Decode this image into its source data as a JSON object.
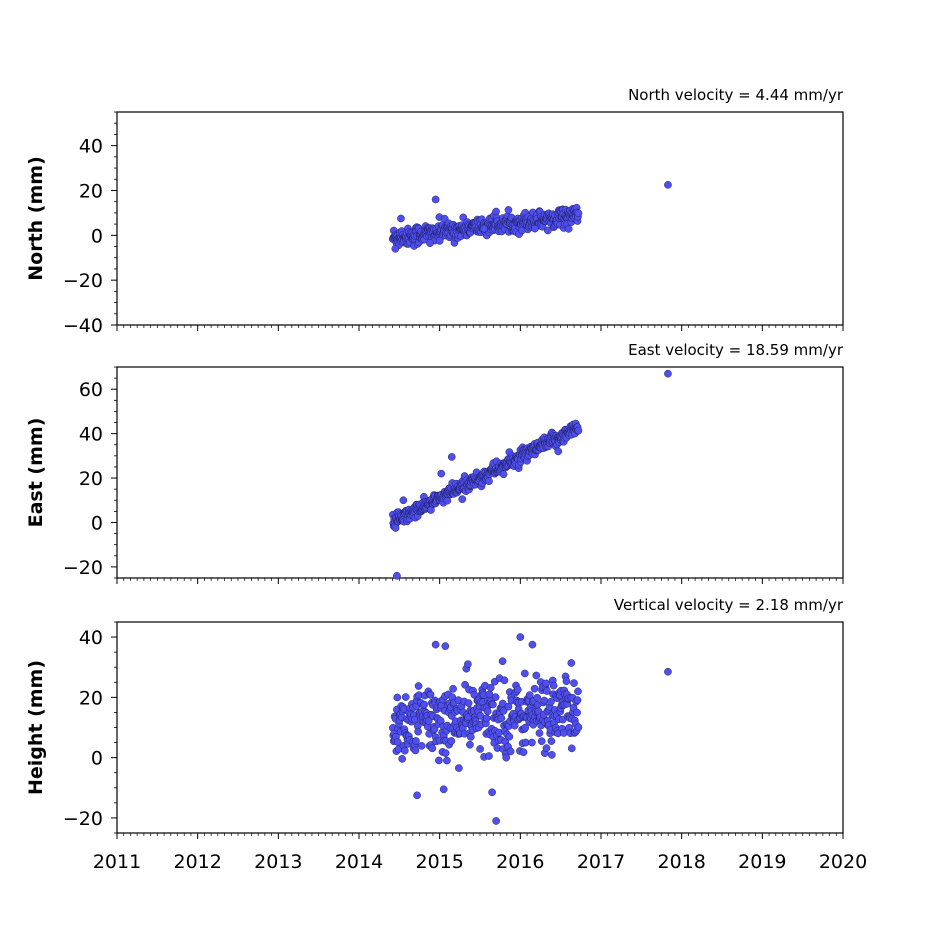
{
  "chart_data": [
    {
      "type": "scatter",
      "title": "North velocity = 4.44 mm/yr",
      "ylabel": "North (mm)",
      "xlabel": "",
      "xlim": [
        2011,
        2020
      ],
      "ylim": [
        -40,
        55
      ],
      "yticks": [
        -40,
        -20,
        0,
        20,
        40
      ],
      "xticks": [
        2011,
        2012,
        2013,
        2014,
        2015,
        2016,
        2017,
        2018,
        2019,
        2020
      ],
      "grid": false,
      "velocity_mm_per_yr": 4.44,
      "series": [
        {
          "trend": {
            "start": 2014.42,
            "end": 2016.72,
            "y_at_start": -1.0,
            "rate": 4.44,
            "scatter": 2.5
          },
          "outliers": [
            {
              "x": 2014.45,
              "y": -6.0
            },
            {
              "x": 2014.52,
              "y": 7.5
            },
            {
              "x": 2014.95,
              "y": 16.0
            },
            {
              "x": 2015.0,
              "y": -2.5
            },
            {
              "x": 2014.88,
              "y": -3.5
            },
            {
              "x": 2015.55,
              "y": 3.0
            },
            {
              "x": 2016.18,
              "y": 3.0
            },
            {
              "x": 2017.83,
              "y": 22.5
            }
          ]
        }
      ]
    },
    {
      "type": "scatter",
      "title": "East velocity = 18.59 mm/yr",
      "ylabel": "East (mm)",
      "xlabel": "",
      "xlim": [
        2011,
        2020
      ],
      "ylim": [
        -25,
        70
      ],
      "yticks": [
        -20,
        0,
        20,
        40,
        60
      ],
      "xticks": [
        2011,
        2012,
        2013,
        2014,
        2015,
        2016,
        2017,
        2018,
        2019,
        2020
      ],
      "grid": false,
      "velocity_mm_per_yr": 18.59,
      "series": [
        {
          "trend": {
            "start": 2014.42,
            "end": 2016.72,
            "y_at_start": 0.0,
            "rate": 18.59,
            "scatter": 2.0
          },
          "outliers": [
            {
              "x": 2014.47,
              "y": -24.0
            },
            {
              "x": 2014.55,
              "y": 10.0
            },
            {
              "x": 2015.15,
              "y": 29.5
            },
            {
              "x": 2015.02,
              "y": 22.0
            },
            {
              "x": 2015.28,
              "y": 10.5
            },
            {
              "x": 2016.47,
              "y": 32.0
            },
            {
              "x": 2017.83,
              "y": 67.0
            }
          ]
        }
      ]
    },
    {
      "type": "scatter",
      "title": "Vertical velocity = 2.18 mm/yr",
      "ylabel": "Height (mm)",
      "xlabel": "",
      "xlim": [
        2011,
        2020
      ],
      "ylim": [
        -25,
        45
      ],
      "yticks": [
        -20,
        0,
        20,
        40
      ],
      "xticks": [
        2011,
        2012,
        2013,
        2014,
        2015,
        2016,
        2017,
        2018,
        2019,
        2020
      ],
      "grid": false,
      "velocity_mm_per_yr": 2.18,
      "series": [
        {
          "trend": {
            "start": 2014.42,
            "end": 2016.72,
            "y_at_start": 11.0,
            "rate": 2.18,
            "scatter": 7.5
          },
          "outliers": [
            {
              "x": 2014.72,
              "y": -12.5
            },
            {
              "x": 2015.05,
              "y": -10.5
            },
            {
              "x": 2015.7,
              "y": -21.0
            },
            {
              "x": 2015.65,
              "y": -11.5
            },
            {
              "x": 2014.95,
              "y": 37.5
            },
            {
              "x": 2015.07,
              "y": 37.0
            },
            {
              "x": 2016.0,
              "y": 40.0
            },
            {
              "x": 2016.15,
              "y": 37.5
            },
            {
              "x": 2015.78,
              "y": 32.0
            },
            {
              "x": 2015.35,
              "y": 31.0
            },
            {
              "x": 2017.83,
              "y": 28.5
            }
          ]
        }
      ]
    }
  ]
}
